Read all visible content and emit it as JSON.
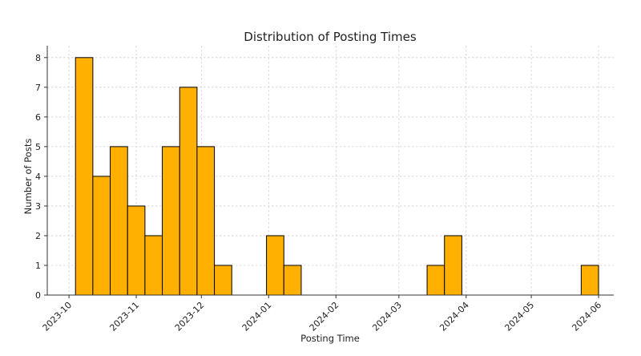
{
  "chart_data": {
    "type": "bar",
    "title": "Distribution of Posting Times",
    "xlabel": "Posting Time",
    "ylabel": "Number of Posts",
    "x_type": "date",
    "x_ticks": [
      "2023-10",
      "2023-11",
      "2023-12",
      "2024-01",
      "2024-02",
      "2024-03",
      "2024-04",
      "2024-05",
      "2024-06"
    ],
    "y_ticks": [
      0,
      1,
      2,
      3,
      4,
      5,
      6,
      7,
      8
    ],
    "xlim": [
      "2023-09-21",
      "2024-06-08"
    ],
    "ylim": [
      0,
      8.4
    ],
    "grid": true,
    "bar_color": "#ffb000",
    "bar_edge_color": "#000000",
    "bins": [
      {
        "start": "2023-10-04",
        "end": "2023-10-12",
        "count": 8
      },
      {
        "start": "2023-10-12",
        "end": "2023-10-20",
        "count": 4
      },
      {
        "start": "2023-10-20",
        "end": "2023-10-28",
        "count": 5
      },
      {
        "start": "2023-10-28",
        "end": "2023-11-05",
        "count": 3
      },
      {
        "start": "2023-11-05",
        "end": "2023-11-13",
        "count": 2
      },
      {
        "start": "2023-11-13",
        "end": "2023-11-21",
        "count": 5
      },
      {
        "start": "2023-11-21",
        "end": "2023-11-29",
        "count": 7
      },
      {
        "start": "2023-11-29",
        "end": "2023-12-07",
        "count": 5
      },
      {
        "start": "2023-12-07",
        "end": "2023-12-15",
        "count": 1
      },
      {
        "start": "2023-12-31",
        "end": "2024-01-08",
        "count": 2
      },
      {
        "start": "2024-01-08",
        "end": "2024-01-16",
        "count": 1
      },
      {
        "start": "2024-03-14",
        "end": "2024-03-22",
        "count": 1
      },
      {
        "start": "2024-03-22",
        "end": "2024-03-30",
        "count": 2
      },
      {
        "start": "2024-05-24",
        "end": "2024-06-01",
        "count": 1
      }
    ]
  }
}
